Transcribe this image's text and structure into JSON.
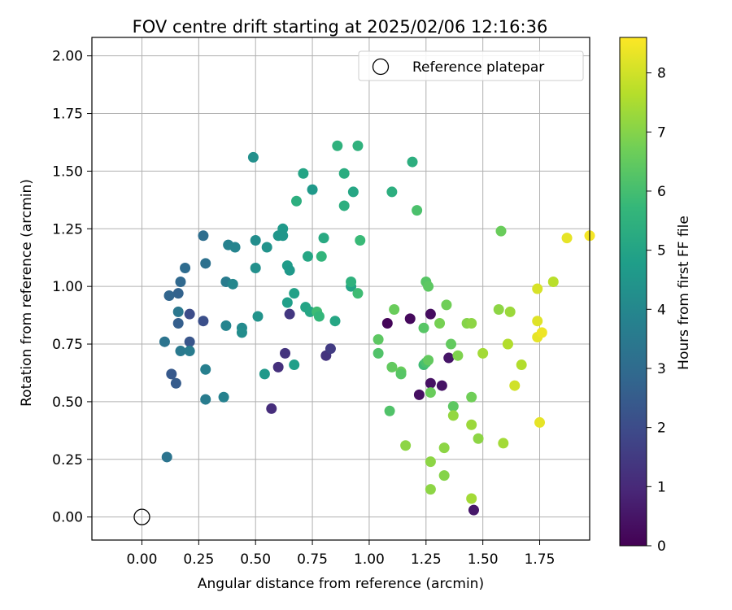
{
  "chart_data": {
    "type": "scatter",
    "title": "FOV centre drift starting at 2025/02/06 12:16:36",
    "xlabel": "Angular distance from reference (arcmin)",
    "ylabel": "Rotation from reference (arcmin)",
    "xlim": [
      -0.22,
      1.97
    ],
    "ylim": [
      -0.1,
      2.08
    ],
    "xticks": [
      "0.00",
      "0.25",
      "0.50",
      "0.75",
      "1.00",
      "1.25",
      "1.50",
      "1.75"
    ],
    "xtick_values": [
      0,
      0.25,
      0.5,
      0.75,
      1.0,
      1.25,
      1.5,
      1.75
    ],
    "yticks": [
      "0.00",
      "0.25",
      "0.50",
      "0.75",
      "1.00",
      "1.25",
      "1.50",
      "1.75",
      "2.00"
    ],
    "ytick_values": [
      0,
      0.25,
      0.5,
      0.75,
      1.0,
      1.25,
      1.5,
      1.75,
      2.0
    ],
    "grid": true,
    "legend": {
      "placement": "top-right",
      "entries": [
        "Reference platepar"
      ]
    },
    "reference_point": {
      "x": 0.0,
      "y": 0.0,
      "label": "Reference platepar"
    },
    "colorbar": {
      "label": "Hours from first FF file",
      "range": [
        0,
        8.6
      ],
      "tick_values": [
        0,
        1,
        2,
        3,
        4,
        5,
        6,
        7,
        8
      ],
      "ticks": [
        "0",
        "1",
        "2",
        "3",
        "4",
        "5",
        "6",
        "7",
        "8"
      ],
      "colormap": "viridis",
      "colormap_stops": [
        "#440154",
        "#482878",
        "#3e4989",
        "#31688e",
        "#26828e",
        "#1f9e89",
        "#35b779",
        "#6ece58",
        "#b5de2b",
        "#fde725"
      ]
    },
    "points": [
      {
        "x": 1.08,
        "y": 0.84,
        "t": 0.1
      },
      {
        "x": 1.18,
        "y": 0.86,
        "t": 0.2
      },
      {
        "x": 1.27,
        "y": 0.88,
        "t": 0.3
      },
      {
        "x": 1.22,
        "y": 0.53,
        "t": 0.35
      },
      {
        "x": 1.27,
        "y": 0.58,
        "t": 0.4
      },
      {
        "x": 1.32,
        "y": 0.57,
        "t": 0.45
      },
      {
        "x": 1.35,
        "y": 0.69,
        "t": 0.5
      },
      {
        "x": 1.46,
        "y": 0.03,
        "t": 0.55
      },
      {
        "x": 0.57,
        "y": 0.47,
        "t": 1.1
      },
      {
        "x": 0.6,
        "y": 0.65,
        "t": 1.2
      },
      {
        "x": 0.63,
        "y": 0.71,
        "t": 1.3
      },
      {
        "x": 0.65,
        "y": 0.88,
        "t": 1.4
      },
      {
        "x": 0.81,
        "y": 0.7,
        "t": 1.3
      },
      {
        "x": 0.83,
        "y": 0.73,
        "t": 1.5
      },
      {
        "x": 0.21,
        "y": 0.88,
        "t": 2.0
      },
      {
        "x": 0.27,
        "y": 0.85,
        "t": 2.1
      },
      {
        "x": 0.21,
        "y": 0.76,
        "t": 2.3
      },
      {
        "x": 0.13,
        "y": 0.62,
        "t": 2.4
      },
      {
        "x": 0.15,
        "y": 0.58,
        "t": 2.5
      },
      {
        "x": 0.16,
        "y": 0.84,
        "t": 2.6
      },
      {
        "x": 0.16,
        "y": 0.97,
        "t": 2.7
      },
      {
        "x": 0.12,
        "y": 0.96,
        "t": 2.8
      },
      {
        "x": 0.17,
        "y": 1.02,
        "t": 2.9
      },
      {
        "x": 0.19,
        "y": 1.08,
        "t": 3.0
      },
      {
        "x": 0.27,
        "y": 1.22,
        "t": 3.1
      },
      {
        "x": 0.28,
        "y": 1.1,
        "t": 3.2
      },
      {
        "x": 0.1,
        "y": 0.76,
        "t": 3.3
      },
      {
        "x": 0.16,
        "y": 0.89,
        "t": 3.4
      },
      {
        "x": 0.17,
        "y": 0.72,
        "t": 3.5
      },
      {
        "x": 0.21,
        "y": 0.72,
        "t": 3.6
      },
      {
        "x": 0.11,
        "y": 0.26,
        "t": 3.3
      },
      {
        "x": 0.28,
        "y": 0.51,
        "t": 3.6
      },
      {
        "x": 0.28,
        "y": 0.64,
        "t": 3.7
      },
      {
        "x": 0.36,
        "y": 0.52,
        "t": 3.8
      },
      {
        "x": 0.37,
        "y": 1.02,
        "t": 3.6
      },
      {
        "x": 0.37,
        "y": 0.83,
        "t": 3.9
      },
      {
        "x": 0.38,
        "y": 1.18,
        "t": 3.8
      },
      {
        "x": 0.41,
        "y": 1.17,
        "t": 3.9
      },
      {
        "x": 0.4,
        "y": 1.01,
        "t": 4.0
      },
      {
        "x": 0.44,
        "y": 0.82,
        "t": 4.1
      },
      {
        "x": 0.44,
        "y": 0.8,
        "t": 4.2
      },
      {
        "x": 0.49,
        "y": 1.56,
        "t": 4.3
      },
      {
        "x": 0.5,
        "y": 1.2,
        "t": 4.2
      },
      {
        "x": 0.5,
        "y": 1.08,
        "t": 4.3
      },
      {
        "x": 0.51,
        "y": 0.87,
        "t": 4.4
      },
      {
        "x": 0.54,
        "y": 0.62,
        "t": 4.6
      },
      {
        "x": 0.55,
        "y": 1.17,
        "t": 4.4
      },
      {
        "x": 0.6,
        "y": 1.22,
        "t": 4.5
      },
      {
        "x": 0.62,
        "y": 1.25,
        "t": 4.6
      },
      {
        "x": 0.62,
        "y": 1.22,
        "t": 4.5
      },
      {
        "x": 0.64,
        "y": 1.09,
        "t": 4.7
      },
      {
        "x": 0.65,
        "y": 1.07,
        "t": 4.6
      },
      {
        "x": 0.64,
        "y": 0.93,
        "t": 4.8
      },
      {
        "x": 0.67,
        "y": 0.97,
        "t": 4.9
      },
      {
        "x": 0.67,
        "y": 0.66,
        "t": 4.8
      },
      {
        "x": 0.68,
        "y": 1.37,
        "t": 5.4
      },
      {
        "x": 0.71,
        "y": 1.49,
        "t": 5.0
      },
      {
        "x": 0.72,
        "y": 0.91,
        "t": 5.0
      },
      {
        "x": 0.73,
        "y": 1.13,
        "t": 5.1
      },
      {
        "x": 0.74,
        "y": 0.89,
        "t": 5.1
      },
      {
        "x": 0.75,
        "y": 1.42,
        "t": 4.6
      },
      {
        "x": 0.77,
        "y": 0.89,
        "t": 5.9
      },
      {
        "x": 0.78,
        "y": 0.87,
        "t": 5.7
      },
      {
        "x": 0.79,
        "y": 1.13,
        "t": 5.6
      },
      {
        "x": 0.8,
        "y": 1.21,
        "t": 5.2
      },
      {
        "x": 0.85,
        "y": 0.85,
        "t": 5.1
      },
      {
        "x": 0.86,
        "y": 1.61,
        "t": 5.5
      },
      {
        "x": 0.89,
        "y": 1.49,
        "t": 5.3
      },
      {
        "x": 0.89,
        "y": 1.35,
        "t": 5.4
      },
      {
        "x": 0.92,
        "y": 1.0,
        "t": 5.0
      },
      {
        "x": 0.92,
        "y": 1.02,
        "t": 5.5
      },
      {
        "x": 0.93,
        "y": 1.41,
        "t": 5.1
      },
      {
        "x": 0.95,
        "y": 1.61,
        "t": 5.5
      },
      {
        "x": 0.95,
        "y": 0.97,
        "t": 5.9
      },
      {
        "x": 0.96,
        "y": 1.2,
        "t": 5.8
      },
      {
        "x": 1.04,
        "y": 0.77,
        "t": 6.4
      },
      {
        "x": 1.04,
        "y": 0.71,
        "t": 6.2
      },
      {
        "x": 1.09,
        "y": 0.46,
        "t": 6.2
      },
      {
        "x": 1.1,
        "y": 1.41,
        "t": 5.4
      },
      {
        "x": 1.1,
        "y": 0.65,
        "t": 6.5
      },
      {
        "x": 1.11,
        "y": 0.9,
        "t": 6.6
      },
      {
        "x": 1.14,
        "y": 0.63,
        "t": 6.6
      },
      {
        "x": 1.14,
        "y": 0.62,
        "t": 6.3
      },
      {
        "x": 1.19,
        "y": 1.54,
        "t": 5.4
      },
      {
        "x": 1.21,
        "y": 1.33,
        "t": 6.1
      },
      {
        "x": 1.24,
        "y": 0.82,
        "t": 6.3
      },
      {
        "x": 1.24,
        "y": 0.66,
        "t": 5.9
      },
      {
        "x": 1.25,
        "y": 0.67,
        "t": 6.1
      },
      {
        "x": 1.25,
        "y": 1.02,
        "t": 6.3
      },
      {
        "x": 1.26,
        "y": 1.0,
        "t": 6.4
      },
      {
        "x": 1.26,
        "y": 0.68,
        "t": 6.5
      },
      {
        "x": 1.27,
        "y": 0.54,
        "t": 6.6
      },
      {
        "x": 1.27,
        "y": 0.24,
        "t": 7.1
      },
      {
        "x": 1.27,
        "y": 0.12,
        "t": 7.1
      },
      {
        "x": 1.16,
        "y": 0.31,
        "t": 7.1
      },
      {
        "x": 1.31,
        "y": 0.84,
        "t": 6.8
      },
      {
        "x": 1.33,
        "y": 0.3,
        "t": 7.1
      },
      {
        "x": 1.33,
        "y": 0.18,
        "t": 7.0
      },
      {
        "x": 1.34,
        "y": 0.92,
        "t": 6.7
      },
      {
        "x": 1.36,
        "y": 0.75,
        "t": 6.5
      },
      {
        "x": 1.37,
        "y": 0.48,
        "t": 6.4
      },
      {
        "x": 1.37,
        "y": 0.44,
        "t": 7.2
      },
      {
        "x": 1.39,
        "y": 0.7,
        "t": 6.9
      },
      {
        "x": 1.43,
        "y": 0.84,
        "t": 7.0
      },
      {
        "x": 1.45,
        "y": 0.84,
        "t": 7.1
      },
      {
        "x": 1.45,
        "y": 0.52,
        "t": 6.7
      },
      {
        "x": 1.45,
        "y": 0.4,
        "t": 7.3
      },
      {
        "x": 1.45,
        "y": 0.08,
        "t": 7.4
      },
      {
        "x": 1.48,
        "y": 0.34,
        "t": 7.1
      },
      {
        "x": 1.5,
        "y": 0.71,
        "t": 7.4
      },
      {
        "x": 1.57,
        "y": 0.9,
        "t": 7.1
      },
      {
        "x": 1.58,
        "y": 1.24,
        "t": 6.6
      },
      {
        "x": 1.59,
        "y": 0.32,
        "t": 7.4
      },
      {
        "x": 1.61,
        "y": 0.75,
        "t": 7.3
      },
      {
        "x": 1.61,
        "y": 0.75,
        "t": 7.6
      },
      {
        "x": 1.62,
        "y": 0.89,
        "t": 7.3
      },
      {
        "x": 1.64,
        "y": 0.57,
        "t": 8.0
      },
      {
        "x": 1.67,
        "y": 0.66,
        "t": 7.6
      },
      {
        "x": 1.74,
        "y": 0.99,
        "t": 8.1
      },
      {
        "x": 1.74,
        "y": 0.85,
        "t": 8.2
      },
      {
        "x": 1.74,
        "y": 0.78,
        "t": 8.3
      },
      {
        "x": 1.76,
        "y": 0.8,
        "t": 8.4
      },
      {
        "x": 1.75,
        "y": 0.41,
        "t": 8.3
      },
      {
        "x": 1.81,
        "y": 1.02,
        "t": 7.7
      },
      {
        "x": 1.87,
        "y": 1.21,
        "t": 8.3
      },
      {
        "x": 1.97,
        "y": 1.22,
        "t": 8.5
      }
    ]
  }
}
